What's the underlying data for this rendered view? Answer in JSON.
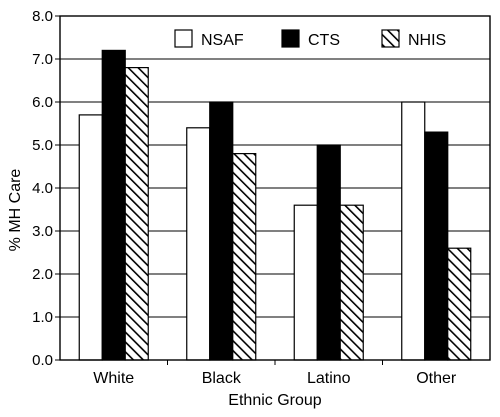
{
  "chart_data": {
    "type": "bar",
    "xlabel": "Ethnic Group",
    "ylabel": "% MH Care",
    "ylim": [
      0,
      8
    ],
    "yticks": [
      "0.0",
      "1.0",
      "2.0",
      "3.0",
      "4.0",
      "5.0",
      "6.0",
      "7.0",
      "8.0"
    ],
    "grid": true,
    "legend_position": "top-right",
    "categories": [
      "White",
      "Black",
      "Latino",
      "Other"
    ],
    "series": [
      {
        "name": "NSAF",
        "values": [
          5.7,
          5.4,
          3.6,
          6.0
        ],
        "fill": "white"
      },
      {
        "name": "CTS",
        "values": [
          7.2,
          6.0,
          5.0,
          5.3
        ],
        "fill": "black"
      },
      {
        "name": "NHIS",
        "values": [
          6.8,
          4.8,
          3.6,
          2.6
        ],
        "fill": "hatch"
      }
    ]
  }
}
